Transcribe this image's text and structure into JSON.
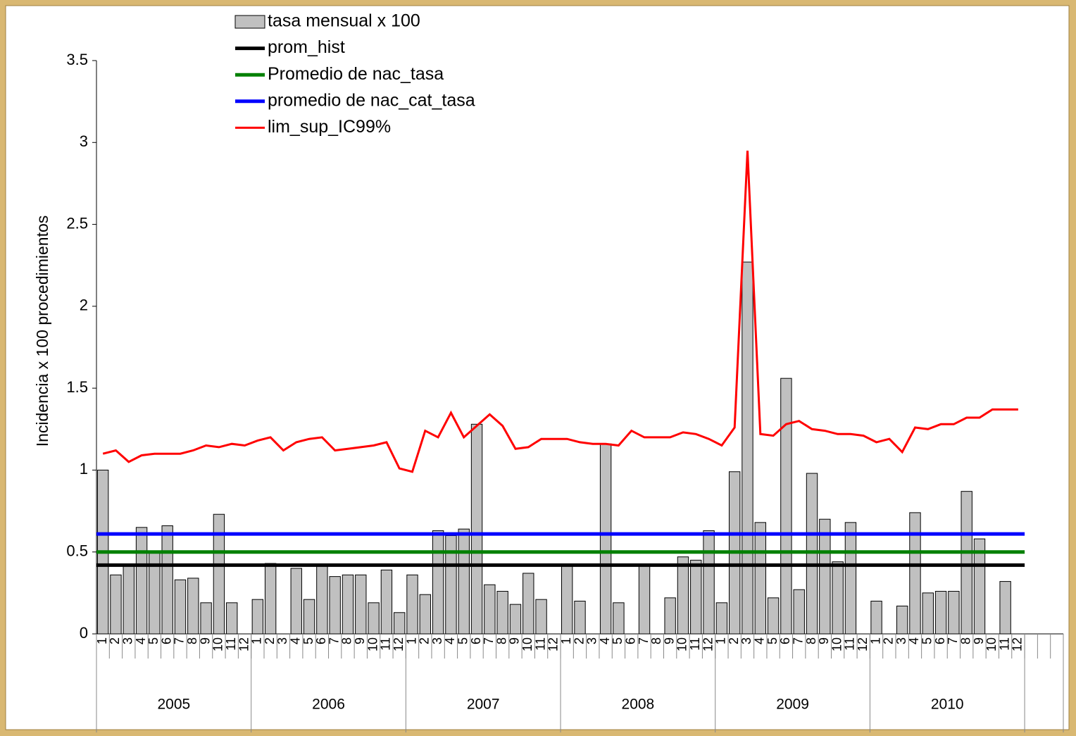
{
  "chart_data": {
    "type": "bar_line",
    "y_axis_label": "Incidencia x 100 procedimientos",
    "ylim": [
      0,
      3.5
    ],
    "yticks": [
      0,
      0.5,
      1,
      1.5,
      2,
      2.5,
      3,
      3.5
    ],
    "categories": [
      "1",
      "2",
      "3",
      "4",
      "5",
      "6",
      "7",
      "8",
      "9",
      "10",
      "11",
      "12",
      "1",
      "2",
      "3",
      "4",
      "5",
      "6",
      "7",
      "8",
      "9",
      "10",
      "11",
      "12",
      "1",
      "2",
      "3",
      "4",
      "5",
      "6",
      "7",
      "8",
      "9",
      "10",
      "11",
      "12",
      "1",
      "2",
      "3",
      "4",
      "5",
      "6",
      "7",
      "8",
      "9",
      "10",
      "11",
      "12",
      "1",
      "2",
      "3",
      "4",
      "5",
      "6",
      "7",
      "8",
      "9",
      "10",
      "11",
      "12",
      "1",
      "2",
      "3",
      "4",
      "5",
      "6",
      "7",
      "8",
      "9",
      "10",
      "11",
      "12",
      null,
      null,
      null
    ],
    "groups": [
      {
        "label": "2005",
        "span": 12
      },
      {
        "label": "2006",
        "span": 12
      },
      {
        "label": "2007",
        "span": 12
      },
      {
        "label": "2008",
        "span": 12
      },
      {
        "label": "2009",
        "span": 12
      },
      {
        "label": "2010",
        "span": 12
      }
    ],
    "bars": {
      "name": "tasa mensual x 100",
      "color": "#c0c0c0",
      "values": [
        1.0,
        0.36,
        0.42,
        0.65,
        0.5,
        0.66,
        0.33,
        0.34,
        0.19,
        0.73,
        0.19,
        0,
        0.21,
        0.43,
        0,
        0.4,
        0.21,
        0.42,
        0.35,
        0.36,
        0.36,
        0.19,
        0.39,
        0.13,
        0.36,
        0.24,
        0.63,
        0.6,
        0.64,
        1.28,
        0.3,
        0.26,
        0.18,
        0.37,
        0.21,
        0,
        0.42,
        0.2,
        0,
        1.16,
        0.19,
        0,
        0.42,
        0,
        0.22,
        0.47,
        0.45,
        0.63,
        0.19,
        0.99,
        2.27,
        0.68,
        0.22,
        1.56,
        0.27,
        0.98,
        0.7,
        0.44,
        0.68,
        0,
        0.2,
        0,
        0.17,
        0.74,
        0.25,
        0.26,
        0.26,
        0.87,
        0.58,
        0,
        0.32,
        0,
        null,
        null,
        null
      ]
    },
    "reference_lines": [
      {
        "name": "prom_hist",
        "color": "#000000",
        "value": 0.42
      },
      {
        "name": "Promedio de nac_tasa",
        "color": "#008000",
        "value": 0.5
      },
      {
        "name": "promedio de nac_cat_tasa",
        "color": "#0000ff",
        "value": 0.61
      }
    ],
    "line": {
      "name": "lim_sup_IC99%",
      "color": "#ff0000",
      "values": [
        1.1,
        1.12,
        1.05,
        1.09,
        1.1,
        1.1,
        1.1,
        1.12,
        1.15,
        1.14,
        1.16,
        1.15,
        1.18,
        1.2,
        1.12,
        1.17,
        1.19,
        1.2,
        1.12,
        1.13,
        1.14,
        1.15,
        1.17,
        1.01,
        0.99,
        1.24,
        1.2,
        1.35,
        1.2,
        1.27,
        1.34,
        1.27,
        1.13,
        1.14,
        1.19,
        1.19,
        1.19,
        1.17,
        1.16,
        1.16,
        1.15,
        1.24,
        1.2,
        1.2,
        1.2,
        1.23,
        1.22,
        1.19,
        1.15,
        1.26,
        2.95,
        1.22,
        1.21,
        1.28,
        1.3,
        1.25,
        1.24,
        1.22,
        1.22,
        1.21,
        1.17,
        1.19,
        1.11,
        1.26,
        1.25,
        1.28,
        1.28,
        1.32,
        1.32,
        1.37,
        1.37,
        1.37,
        null,
        null,
        null
      ]
    }
  }
}
